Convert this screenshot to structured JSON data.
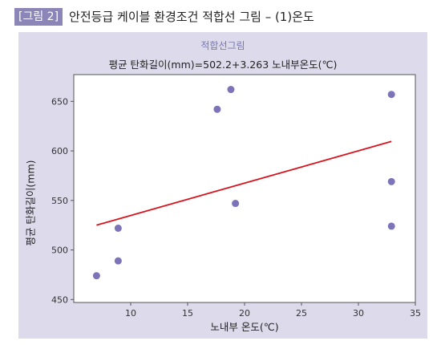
{
  "figure": {
    "label": "[그림 2]",
    "title": "안전등급 케이블 환경조건 적합선 그림 – (1)온도"
  },
  "colors": {
    "panel_bg": "#dcdaeb",
    "label_bg": "#8c85b8",
    "point": "#7c73b9",
    "fit_line": "#d7141e"
  },
  "chart_data": {
    "type": "scatter",
    "subtitle": "적합선그림",
    "title": "평균 탄화길이(mm)=502.2+3.263 노내부온도(℃)",
    "xlabel": "노내부 온도(℃)",
    "ylabel": "평균 탄화길이(mm)",
    "xlim": [
      5,
      35
    ],
    "ylim": [
      447,
      677
    ],
    "x_ticks": [
      10,
      15,
      20,
      25,
      30,
      35
    ],
    "y_ticks": [
      450,
      500,
      550,
      600,
      650
    ],
    "grid": false,
    "series": [
      {
        "kind": "points",
        "points": [
          {
            "x": 7.0,
            "y": 474
          },
          {
            "x": 8.9,
            "y": 489
          },
          {
            "x": 8.9,
            "y": 522
          },
          {
            "x": 17.6,
            "y": 642
          },
          {
            "x": 18.8,
            "y": 662
          },
          {
            "x": 19.2,
            "y": 547
          },
          {
            "x": 32.9,
            "y": 657
          },
          {
            "x": 32.9,
            "y": 569
          },
          {
            "x": 32.9,
            "y": 524
          }
        ]
      },
      {
        "kind": "fit_line",
        "intercept": 502.2,
        "slope": 3.263,
        "x_range": [
          7.0,
          32.9
        ]
      }
    ]
  }
}
